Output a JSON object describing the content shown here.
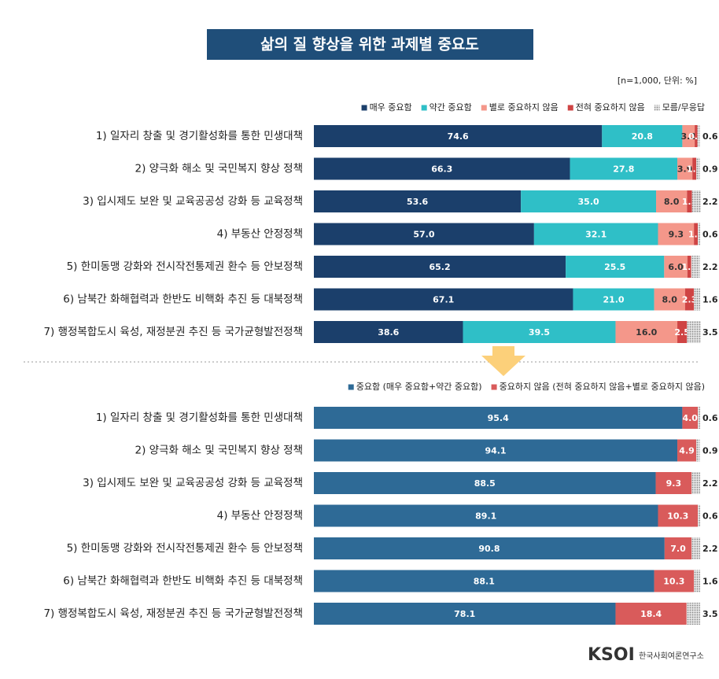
{
  "logo": {
    "mark": "KSOI",
    "text": "한국사회여론연구소"
  },
  "chart_data": [
    {
      "type": "stacked-barh",
      "title": "삶의 질 향상을 위한 과제별 중요도",
      "note": "[n=1,000,  단위: %]",
      "xlim": [
        0,
        100
      ],
      "legend": "top-right",
      "categories": [
        "1) 일자리 창출 및 경기활성화를 통한 민생대책",
        "2) 양극화 해소 및 국민복지 향상 정책",
        "3) 입시제도 보완 및 교육공공성 강화 등 교육정책",
        "4) 부동산 안정정책",
        "5) 한미동맹 강화와 전시작전통제권 환수 등 안보정책",
        "6) 남북간 화해협력과 한반도 비핵화 추진 등 대북정책",
        "7) 행정복합도시 육성, 재정분권 추진 등 국가균형발전정책"
      ],
      "series": [
        {
          "name": "매우 중요함",
          "color": "#1b3f6b",
          "label_color": "#ffffff",
          "values": [
            74.6,
            66.3,
            53.6,
            57.0,
            65.2,
            67.1,
            38.6
          ],
          "value_labels": [
            "74.6",
            "66.3",
            "53.6",
            "57.0",
            "65.2",
            "67.1",
            "38.6"
          ]
        },
        {
          "name": "약간 중요함",
          "color": "#2fbfc7",
          "label_color": "#ffffff",
          "values": [
            20.8,
            27.8,
            35.0,
            32.1,
            25.5,
            21.0,
            39.5
          ],
          "value_labels": [
            "20.8",
            "27.8",
            "35.0",
            "32.1",
            "25.5",
            "21.0",
            "39.5"
          ]
        },
        {
          "name": "별로 중요하지 않음",
          "color": "#f4978a",
          "label_color": "#333333",
          "values": [
            3.2,
            3.9,
            8.0,
            9.3,
            6.0,
            8.0,
            16.0
          ],
          "value_labels": [
            "3.2",
            "3.9",
            "8.0",
            "9.3",
            "6.0",
            "8.0",
            "16.0"
          ]
        },
        {
          "name": "전혀 중요하지 않음",
          "color": "#cf4444",
          "label_color": "#ffffff",
          "values": [
            0.7,
            1.0,
            1.3,
            1.0,
            1.0,
            2.3,
            2.5
          ],
          "value_labels": [
            "0.7",
            "1.0",
            "1.3",
            "1.0",
            "1.0",
            "2.3",
            "2.5"
          ]
        },
        {
          "name": "모름/무응답",
          "color": "#bfbfbf",
          "pattern": "dots",
          "label_color": "#222222",
          "values": [
            0.6,
            0.9,
            2.2,
            0.6,
            2.2,
            1.6,
            3.5
          ],
          "value_labels": [
            "0.6",
            "0.9",
            "2.2",
            "0.6",
            "2.2",
            "1.6",
            "3.5"
          ]
        }
      ]
    },
    {
      "type": "stacked-barh",
      "xlim": [
        0,
        100
      ],
      "legend": "top-right",
      "categories": [
        "1) 일자리 창출 및 경기활성화를 통한 민생대책",
        "2) 양극화 해소 및 국민복지 향상 정책",
        "3) 입시제도 보완 및 교육공공성 강화 등 교육정책",
        "4) 부동산 안정정책",
        "5) 한미동맹 강화와 전시작전통제권 환수 등 안보정책",
        "6) 남북간 화해협력과 한반도 비핵화 추진 등 대북정책",
        "7) 행정복합도시 육성, 재정분권 추진 등 국가균형발전정책"
      ],
      "series": [
        {
          "name": "중요함 (매우 중요함+약간 중요함)",
          "color": "#2e6a96",
          "label_color": "#ffffff",
          "values": [
            95.4,
            94.1,
            88.5,
            89.1,
            90.8,
            88.1,
            78.1
          ],
          "value_labels": [
            "95.4",
            "94.1",
            "88.5",
            "89.1",
            "90.8",
            "88.1",
            "78.1"
          ]
        },
        {
          "name": "중요하지 않음 (전혀 중요하지 않음+별로 중요하지 않음)",
          "color": "#d95b5b",
          "label_color": "#ffffff",
          "values": [
            4.0,
            4.9,
            9.3,
            10.3,
            7.0,
            10.3,
            18.4
          ],
          "value_labels": [
            "4.0",
            "4.9",
            "9.3",
            "10.3",
            "7.0",
            "10.3",
            "18.4"
          ]
        },
        {
          "color": "#bfbfbf",
          "pattern": "dots",
          "label_color": "#222222",
          "values": [
            0.6,
            0.9,
            2.2,
            0.6,
            2.2,
            1.6,
            3.5
          ],
          "value_labels": [
            "0.6",
            "0.9",
            "2.2",
            "0.6",
            "2.2",
            "1.6",
            "3.5"
          ]
        }
      ]
    }
  ]
}
